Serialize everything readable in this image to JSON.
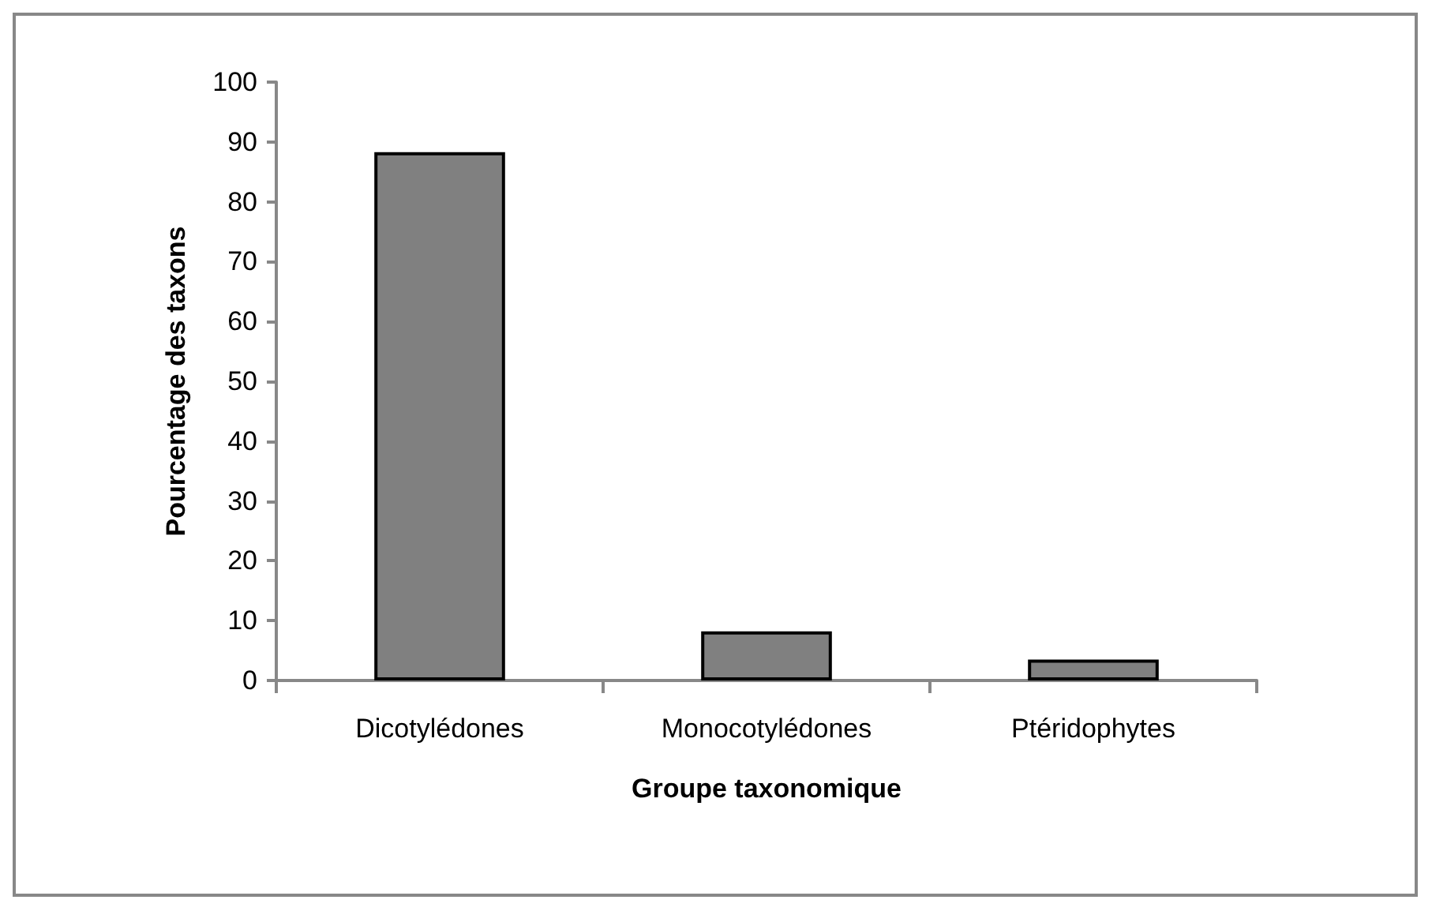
{
  "chart_data": {
    "type": "bar",
    "xlabel": "Groupe taxonomique",
    "ylabel": "Pourcentage des taxons",
    "categories": [
      "Dicotylédones",
      "Monocotylédones",
      "Ptéridophytes"
    ],
    "values": [
      88.3,
      8.2,
      3.5
    ],
    "color": "#808080",
    "ylim": [
      0,
      100
    ],
    "yticks": [
      0,
      10,
      20,
      30,
      40,
      50,
      60,
      70,
      80,
      90,
      100
    ],
    "grid": false
  }
}
